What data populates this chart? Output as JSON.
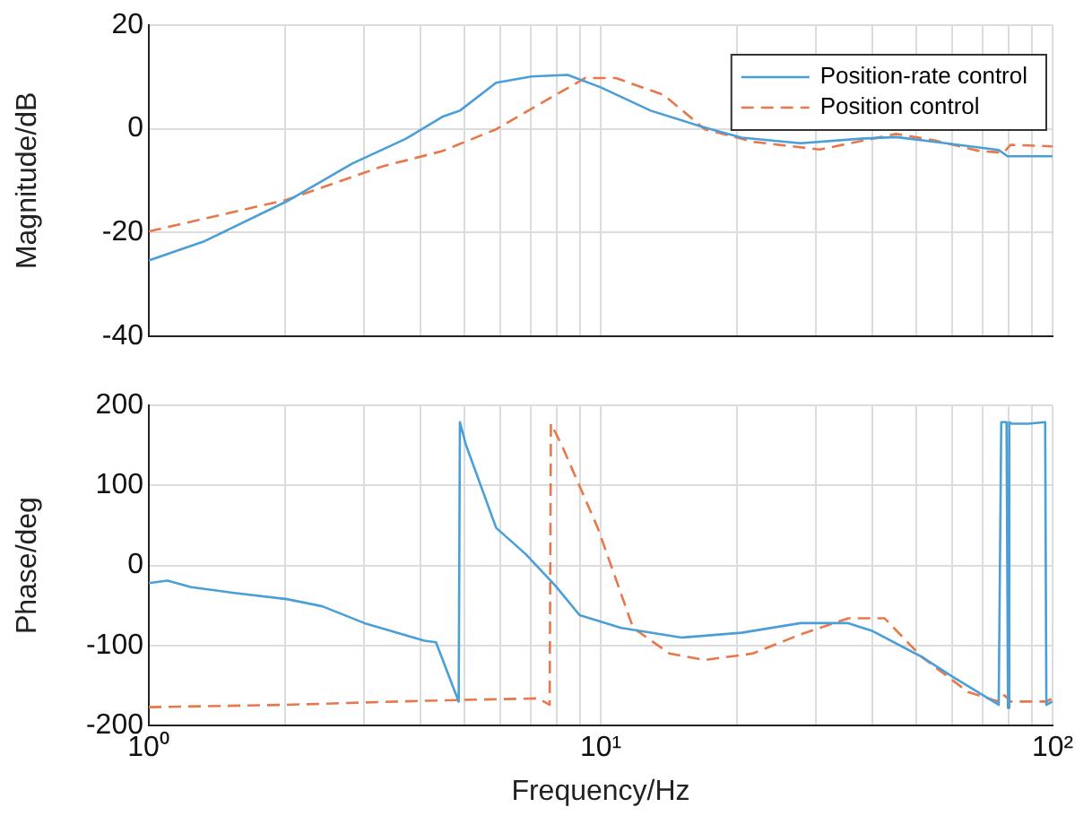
{
  "chart_data": [
    {
      "type": "line",
      "ylabel": "Magnitude/dB",
      "xlim": [
        1,
        100
      ],
      "ylim": [
        -40,
        20
      ],
      "log": "x",
      "grid": true,
      "legend": "top right",
      "marker": "none",
      "tick_labels": "y",
      "xticks": [
        {
          "value": 1,
          "label": null
        },
        {
          "value": 2,
          "label": null
        },
        {
          "value": 3,
          "label": null
        },
        {
          "value": 4,
          "label": null
        },
        {
          "value": 5,
          "label": null
        },
        {
          "value": 6,
          "label": null
        },
        {
          "value": 7,
          "label": null
        },
        {
          "value": 8,
          "label": null
        },
        {
          "value": 9,
          "label": null
        },
        {
          "value": 10,
          "label": null
        },
        {
          "value": 20,
          "label": null
        },
        {
          "value": 30,
          "label": null
        },
        {
          "value": 40,
          "label": null
        },
        {
          "value": 50,
          "label": null
        },
        {
          "value": 60,
          "label": null
        },
        {
          "value": 70,
          "label": null
        },
        {
          "value": 80,
          "label": null
        },
        {
          "value": 90,
          "label": null
        },
        {
          "value": 100,
          "label": null
        }
      ],
      "yticks": [
        -40,
        -20,
        0,
        20
      ],
      "series": [
        {
          "name": "Position-rate control",
          "color": "#4a9fd8",
          "line_style": "solid",
          "x": [
            1,
            1.32,
            2.02,
            2.82,
            3.71,
            4.46,
            4.88,
            5.87,
            7.04,
            8.45,
            10,
            12.9,
            16.6,
            20.5,
            27.7,
            37.7,
            45,
            54.5,
            76,
            79.5,
            100
          ],
          "values": [
            -25.4,
            -21.8,
            -14,
            -6.7,
            -1.9,
            2.3,
            3.5,
            8.9,
            10.1,
            10.4,
            8,
            3.5,
            0.5,
            -1.7,
            -2.8,
            -1.9,
            -1.6,
            -2.5,
            -4.1,
            -5.3,
            -5.3
          ]
        },
        {
          "name": "Position control",
          "color": "#e8784a",
          "line_style": "dashed",
          "x": [
            1,
            2.02,
            3.28,
            4.46,
            5.87,
            7.72,
            9.25,
            10.8,
            13.8,
            17,
            21.7,
            30.5,
            45,
            54.5,
            69,
            78,
            80.7,
            100
          ],
          "values": [
            -19.8,
            -13.7,
            -7.3,
            -4.3,
            -0.1,
            5.9,
            9.8,
            9.8,
            6.5,
            -0.1,
            -2.5,
            -4,
            -1,
            -2.2,
            -4.3,
            -4.6,
            -3.1,
            -3.4
          ]
        }
      ]
    },
    {
      "type": "line",
      "ylabel": "Phase/deg",
      "xlabel": "Frequency/Hz",
      "xlim": [
        1,
        100
      ],
      "ylim": [
        -200,
        200
      ],
      "log": "x",
      "grid": true,
      "marker": "none",
      "xticks": [
        {
          "value": 1,
          "label": "10⁰"
        },
        {
          "value": 2,
          "label": null
        },
        {
          "value": 3,
          "label": null
        },
        {
          "value": 4,
          "label": null
        },
        {
          "value": 5,
          "label": null
        },
        {
          "value": 6,
          "label": null
        },
        {
          "value": 7,
          "label": null
        },
        {
          "value": 8,
          "label": null
        },
        {
          "value": 9,
          "label": null
        },
        {
          "value": 10,
          "label": "10¹"
        },
        {
          "value": 20,
          "label": null
        },
        {
          "value": 30,
          "label": null
        },
        {
          "value": 40,
          "label": null
        },
        {
          "value": 50,
          "label": null
        },
        {
          "value": 60,
          "label": null
        },
        {
          "value": 70,
          "label": null
        },
        {
          "value": 80,
          "label": null
        },
        {
          "value": 90,
          "label": null
        },
        {
          "value": 100,
          "label": "10²"
        }
      ],
      "yticks": [
        -200,
        -100,
        0,
        100,
        200
      ],
      "series": [
        {
          "color": "#4a9fd8",
          "line_style": "solid",
          "x": [
            1,
            1.1,
            1.24,
            1.53,
            2.02,
            2.42,
            3,
            4.07,
            4.32,
            4.85,
            4.88,
            5.03,
            5.87,
            6.83,
            7.96,
            8.98,
            11.1,
            15.1,
            20.5,
            27.7,
            35.3,
            40,
            51.3,
            59.3,
            76,
            77,
            79.1,
            79.7,
            80.2,
            81.3,
            88.6,
            96.3,
            96.9,
            100
          ],
          "values": [
            -22,
            -19,
            -27,
            -34,
            -42,
            -51,
            -72,
            -94,
            -96,
            -170,
            179,
            151,
            47,
            14,
            -26,
            -62,
            -78,
            -90,
            -84,
            -72,
            -72,
            -82,
            -114,
            -137,
            -174,
            179,
            179,
            -178,
            179,
            177,
            177,
            179,
            -174,
            -170
          ]
        },
        {
          "color": "#e8784a",
          "line_style": "dashed",
          "x": [
            1,
            2.02,
            4.07,
            7.27,
            7.71,
            7.76,
            8.19,
            9.85,
            11.8,
            14.2,
            17,
            21.7,
            27.7,
            35.3,
            42.5,
            51.3,
            65,
            76,
            78.3,
            80.7,
            96.9,
            100
          ],
          "values": [
            -177,
            -174,
            -169,
            -166,
            -174,
            177,
            151,
            47,
            -78,
            -110,
            -118,
            -110,
            -86,
            -66,
            -66,
            -114,
            -158,
            -170,
            -162,
            -170,
            -170,
            -166
          ]
        }
      ]
    }
  ]
}
